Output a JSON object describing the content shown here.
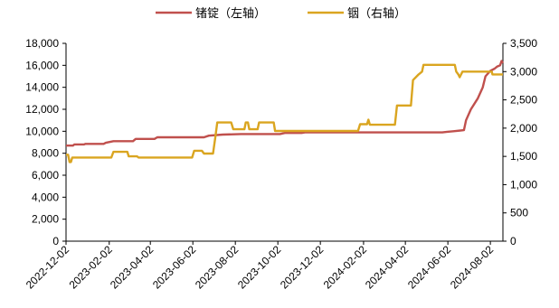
{
  "chart_data": {
    "type": "line",
    "title": "",
    "grid": false,
    "legend_position": "top",
    "x_start": "2022-12-02",
    "x_end": "2024-08-20",
    "x_tick_labels": [
      "2022-12-02",
      "2023-02-02",
      "2023-04-02",
      "2023-06-02",
      "2023-08-02",
      "2023-10-02",
      "2023-12-02",
      "2024-02-02",
      "2024-04-02",
      "2024-06-02",
      "2024-08-02"
    ],
    "y_left": {
      "label": "",
      "min": 0,
      "max": 18000,
      "ticks": [
        0,
        2000,
        4000,
        6000,
        8000,
        10000,
        12000,
        14000,
        16000,
        18000
      ],
      "tick_labels": [
        "0",
        "2,000",
        "4,000",
        "6,000",
        "8,000",
        "10,000",
        "12,000",
        "14,000",
        "16,000",
        "18,000"
      ]
    },
    "y_right": {
      "label": "",
      "min": 0,
      "max": 3500,
      "ticks": [
        0,
        500,
        1000,
        1500,
        2000,
        2500,
        3000,
        3500
      ],
      "tick_labels": [
        "0",
        "500",
        "1,000",
        "1,500",
        "2,000",
        "2,500",
        "3,000",
        "3,500"
      ]
    },
    "series": [
      {
        "name": "锗锭（左轴）",
        "axis": "left",
        "color": "#C0504D",
        "points": [
          [
            "2022-12-02",
            8700
          ],
          [
            "2022-12-12",
            8700
          ],
          [
            "2022-12-14",
            8800
          ],
          [
            "2022-12-28",
            8800
          ],
          [
            "2022-12-30",
            8850
          ],
          [
            "2023-01-25",
            8850
          ],
          [
            "2023-01-28",
            8950
          ],
          [
            "2023-02-08",
            9100
          ],
          [
            "2023-03-08",
            9100
          ],
          [
            "2023-03-12",
            9300
          ],
          [
            "2023-04-08",
            9300
          ],
          [
            "2023-04-12",
            9450
          ],
          [
            "2023-06-18",
            9450
          ],
          [
            "2023-06-25",
            9600
          ],
          [
            "2023-07-15",
            9700
          ],
          [
            "2023-08-10",
            9750
          ],
          [
            "2023-10-05",
            9750
          ],
          [
            "2023-10-12",
            9850
          ],
          [
            "2023-11-05",
            9850
          ],
          [
            "2023-11-10",
            9900
          ],
          [
            "2024-05-25",
            9900
          ],
          [
            "2024-06-01",
            9950
          ],
          [
            "2024-06-10",
            10000
          ],
          [
            "2024-06-25",
            10100
          ],
          [
            "2024-06-28",
            11000
          ],
          [
            "2024-07-05",
            12000
          ],
          [
            "2024-07-15",
            13000
          ],
          [
            "2024-07-22",
            14000
          ],
          [
            "2024-07-26",
            15000
          ],
          [
            "2024-08-02",
            15500
          ],
          [
            "2024-08-08",
            15700
          ],
          [
            "2024-08-12",
            15900
          ],
          [
            "2024-08-16",
            16000
          ],
          [
            "2024-08-18",
            16400
          ],
          [
            "2024-08-20",
            16200
          ]
        ]
      },
      {
        "name": "铟（右轴）",
        "axis": "right",
        "color": "#DAA520",
        "points": [
          [
            "2022-12-02",
            1530
          ],
          [
            "2022-12-05",
            1530
          ],
          [
            "2022-12-07",
            1400
          ],
          [
            "2022-12-09",
            1400
          ],
          [
            "2022-12-11",
            1480
          ],
          [
            "2023-02-05",
            1480
          ],
          [
            "2023-02-08",
            1580
          ],
          [
            "2023-02-28",
            1580
          ],
          [
            "2023-03-02",
            1500
          ],
          [
            "2023-03-14",
            1500
          ],
          [
            "2023-03-16",
            1480
          ],
          [
            "2023-06-01",
            1480
          ],
          [
            "2023-06-04",
            1600
          ],
          [
            "2023-06-15",
            1600
          ],
          [
            "2023-06-18",
            1550
          ],
          [
            "2023-07-01",
            1550
          ],
          [
            "2023-07-04",
            1820
          ],
          [
            "2023-07-07",
            2100
          ],
          [
            "2023-07-27",
            2100
          ],
          [
            "2023-07-30",
            1980
          ],
          [
            "2023-08-15",
            1980
          ],
          [
            "2023-08-17",
            2100
          ],
          [
            "2023-08-20",
            2100
          ],
          [
            "2023-08-22",
            1980
          ],
          [
            "2023-09-03",
            1980
          ],
          [
            "2023-09-05",
            2100
          ],
          [
            "2023-09-26",
            2100
          ],
          [
            "2023-09-28",
            1950
          ],
          [
            "2024-01-25",
            1950
          ],
          [
            "2024-01-28",
            2070
          ],
          [
            "2024-02-07",
            2070
          ],
          [
            "2024-02-09",
            2150
          ],
          [
            "2024-02-11",
            2060
          ],
          [
            "2024-03-18",
            2060
          ],
          [
            "2024-03-21",
            2400
          ],
          [
            "2024-04-10",
            2400
          ],
          [
            "2024-04-13",
            2850
          ],
          [
            "2024-04-21",
            2950
          ],
          [
            "2024-04-26",
            3000
          ],
          [
            "2024-04-28",
            3120
          ],
          [
            "2024-06-12",
            3120
          ],
          [
            "2024-06-14",
            3000
          ],
          [
            "2024-06-17",
            2950
          ],
          [
            "2024-06-19",
            2900
          ],
          [
            "2024-06-23",
            3000
          ],
          [
            "2024-08-04",
            3000
          ],
          [
            "2024-08-05",
            2950
          ],
          [
            "2024-08-20",
            2950
          ]
        ]
      }
    ]
  }
}
